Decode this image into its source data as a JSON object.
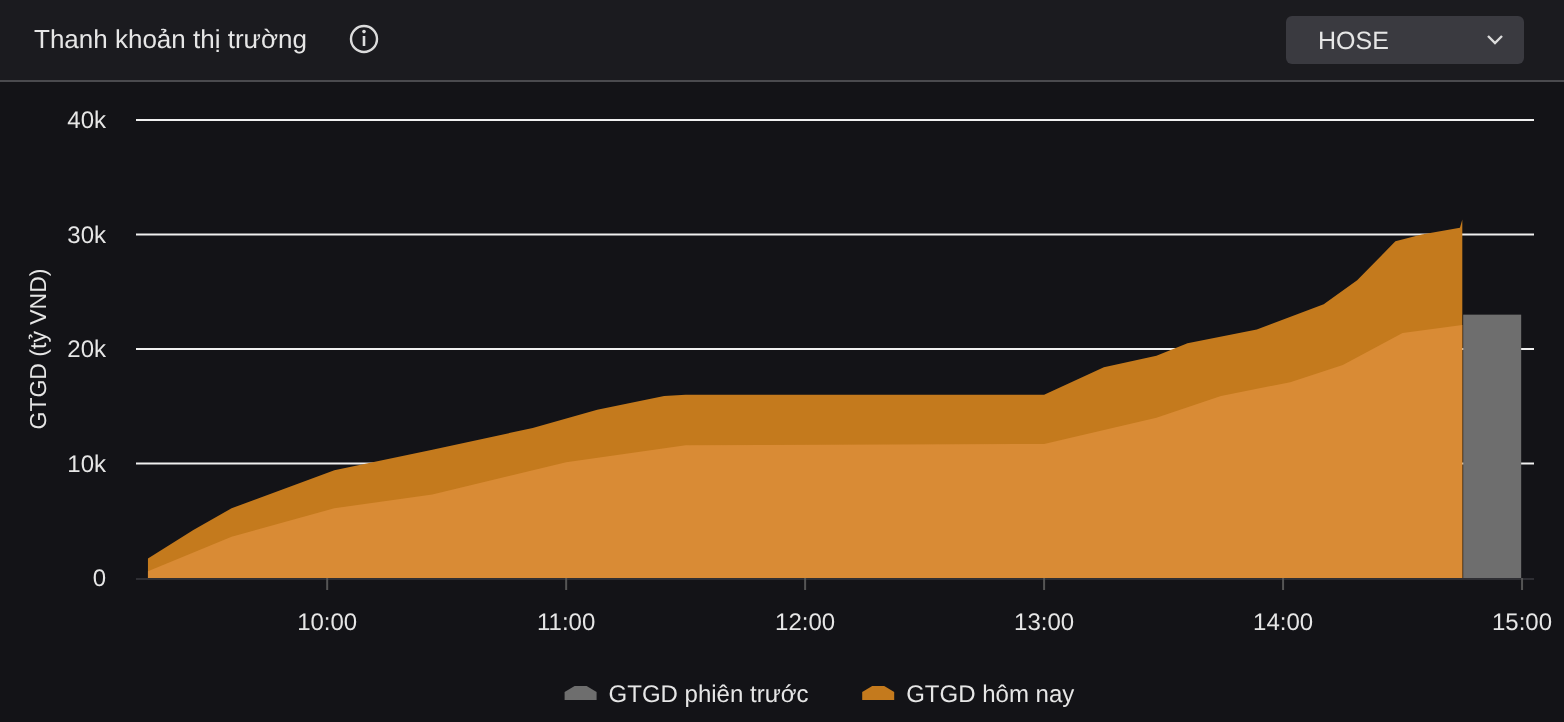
{
  "chart_data": {
    "type": "area",
    "title": "Thanh khoản thị trường",
    "ylabel": "GTGD (tỷ VND)",
    "annotations": [
      "HOSE"
    ],
    "xlim": [
      9.2,
      15.05
    ],
    "xticks": [
      {
        "value": 10,
        "label": "10:00"
      },
      {
        "value": 11,
        "label": "11:00"
      },
      {
        "value": 12,
        "label": "12:00"
      },
      {
        "value": 13,
        "label": "13:00"
      },
      {
        "value": 14,
        "label": "14:00"
      },
      {
        "value": 15,
        "label": "15:00"
      }
    ],
    "ylim": [
      0,
      40000
    ],
    "yticks": [
      0,
      {
        "value": 10000,
        "label": "10k"
      },
      {
        "value": 20000,
        "label": "20k"
      },
      {
        "value": 30000,
        "label": "30k"
      },
      {
        "value": 40000,
        "label": "40k"
      }
    ],
    "grid": "y",
    "legend": "bottom",
    "series": [
      {
        "name": "GTGD phiên trước",
        "type": "bar",
        "color": "#6e6e6e",
        "x": [
          14.875
        ],
        "values": [
          23000
        ]
      },
      {
        "name": "GTGD hôm nay",
        "color": "#c47a1d",
        "x": [
          9.25,
          9.44,
          9.6,
          10.03,
          10.44,
          10.86,
          11.13,
          11.41,
          11.5,
          13.0,
          13.25,
          13.47,
          13.6,
          13.89,
          14.17,
          14.31,
          14.47,
          14.58,
          14.74,
          14.75
        ],
        "values": [
          1700,
          4200,
          6100,
          9400,
          11200,
          13100,
          14700,
          15900,
          16000,
          16000,
          18400,
          19400,
          20500,
          21700,
          23900,
          26000,
          29400,
          30000,
          30600,
          31300
        ]
      },
      {
        "color": "#d98b35",
        "x": [
          9.25,
          9.6,
          10.03,
          10.44,
          11.0,
          11.5,
          13.0,
          13.47,
          13.74,
          14.03,
          14.25,
          14.5,
          14.75
        ],
        "values": [
          600,
          3600,
          6100,
          7300,
          10100,
          11600,
          11700,
          14000,
          15900,
          17100,
          18600,
          21400,
          22100
        ]
      }
    ]
  }
}
